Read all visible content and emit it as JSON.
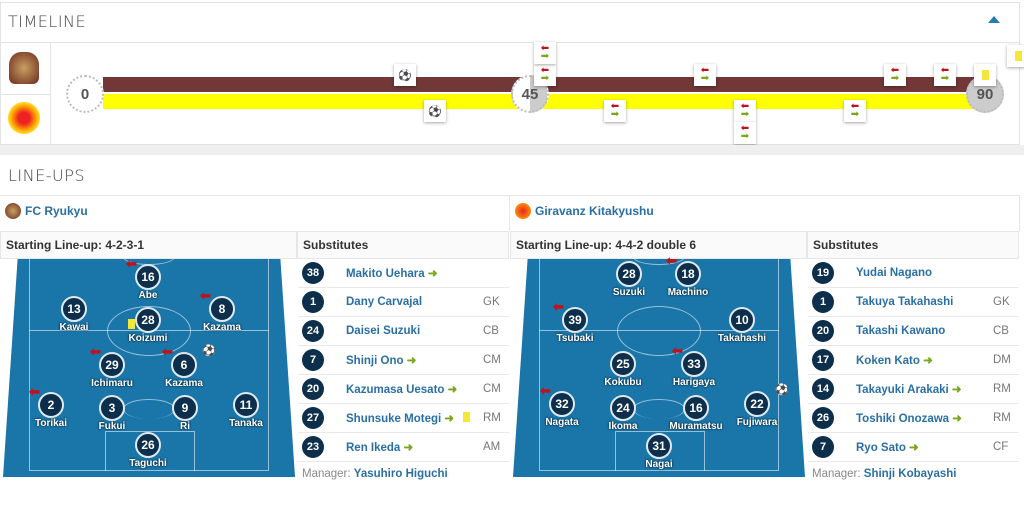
{
  "timeline": {
    "title": "TIMELINE",
    "collapse_icon": "triangle-up-icon",
    "minutes": [
      "0",
      "45",
      "90"
    ],
    "colors": {
      "home": "#723838",
      "away": "#ffff00"
    },
    "home_events": [
      {
        "minute": 32,
        "type": "goal"
      },
      {
        "minute": 46,
        "type": "substitution"
      },
      {
        "minute": 46,
        "type": "substitution"
      },
      {
        "minute": 62,
        "type": "substitution"
      },
      {
        "minute": 81,
        "type": "substitution"
      },
      {
        "minute": 86,
        "type": "substitution"
      },
      {
        "minute": 90,
        "type": "yellow-card"
      },
      {
        "minute": "90+",
        "type": "yellow-card"
      }
    ],
    "away_events": [
      {
        "minute": 35,
        "type": "goal"
      },
      {
        "minute": 53,
        "type": "substitution"
      },
      {
        "minute": 66,
        "type": "substitution"
      },
      {
        "minute": 66,
        "type": "substitution"
      },
      {
        "minute": 77,
        "type": "substitution"
      }
    ]
  },
  "lineups": {
    "title": "LINE-UPS",
    "home": {
      "team": "FC Ryukyu",
      "formation_label": "Starting Line-up: 4-2-3-1",
      "subs_label": "Substitutes",
      "players": [
        {
          "no": "16",
          "name": "Abe",
          "sub_out": true
        },
        {
          "no": "13",
          "name": "Kawai"
        },
        {
          "no": "28",
          "name": "Koizumi",
          "yellow": true
        },
        {
          "no": "8",
          "name": "Kazama",
          "sub_out": true
        },
        {
          "no": "29",
          "name": "Ichimaru",
          "sub_out": true
        },
        {
          "no": "6",
          "name": "Kazama",
          "sub_out": true,
          "goal": true
        },
        {
          "no": "2",
          "name": "Torikai",
          "sub_out": true
        },
        {
          "no": "3",
          "name": "Fukui"
        },
        {
          "no": "9",
          "name": "Ri"
        },
        {
          "no": "11",
          "name": "Tanaka"
        },
        {
          "no": "26",
          "name": "Taguchi"
        }
      ],
      "subs": [
        {
          "no": "38",
          "name": "Makito Uehara",
          "pos": "",
          "in": true
        },
        {
          "no": "1",
          "name": "Dany Carvajal",
          "pos": "GK"
        },
        {
          "no": "24",
          "name": "Daisei Suzuki",
          "pos": "CB"
        },
        {
          "no": "7",
          "name": "Shinji Ono",
          "pos": "CM",
          "in": true
        },
        {
          "no": "20",
          "name": "Kazumasa Uesato",
          "pos": "CM",
          "in": true
        },
        {
          "no": "27",
          "name": "Shunsuke Motegi",
          "pos": "RM",
          "in": true,
          "yellow": true
        },
        {
          "no": "23",
          "name": "Ren Ikeda",
          "pos": "AM",
          "in": true
        }
      ],
      "manager_label": "Manager:",
      "manager": "Yasuhiro Higuchi"
    },
    "away": {
      "team": "Giravanz Kitakyushu",
      "formation_label": "Starting Line-up: 4-4-2 double 6",
      "subs_label": "Substitutes",
      "players": [
        {
          "no": "28",
          "name": "Suzuki"
        },
        {
          "no": "18",
          "name": "Machino",
          "sub_out": true
        },
        {
          "no": "39",
          "name": "Tsubaki",
          "sub_out": true
        },
        {
          "no": "10",
          "name": "Takahashi"
        },
        {
          "no": "25",
          "name": "Kokubu"
        },
        {
          "no": "33",
          "name": "Harigaya",
          "sub_out": true
        },
        {
          "no": "32",
          "name": "Nagata",
          "sub_out": true
        },
        {
          "no": "24",
          "name": "Ikoma"
        },
        {
          "no": "16",
          "name": "Muramatsu"
        },
        {
          "no": "22",
          "name": "Fujiwara",
          "goal": true
        },
        {
          "no": "31",
          "name": "Nagai"
        }
      ],
      "subs": [
        {
          "no": "19",
          "name": "Yudai Nagano",
          "pos": ""
        },
        {
          "no": "1",
          "name": "Takuya Takahashi",
          "pos": "GK"
        },
        {
          "no": "20",
          "name": "Takashi Kawano",
          "pos": "CB"
        },
        {
          "no": "17",
          "name": "Koken Kato",
          "pos": "DM",
          "in": true
        },
        {
          "no": "14",
          "name": "Takayuki Arakaki",
          "pos": "RM",
          "in": true
        },
        {
          "no": "26",
          "name": "Toshiki Onozawa",
          "pos": "RM",
          "in": true
        },
        {
          "no": "7",
          "name": "Ryo Sato",
          "pos": "CF",
          "in": true
        }
      ],
      "manager_label": "Manager:",
      "manager": "Shinji Kobayashi"
    }
  }
}
